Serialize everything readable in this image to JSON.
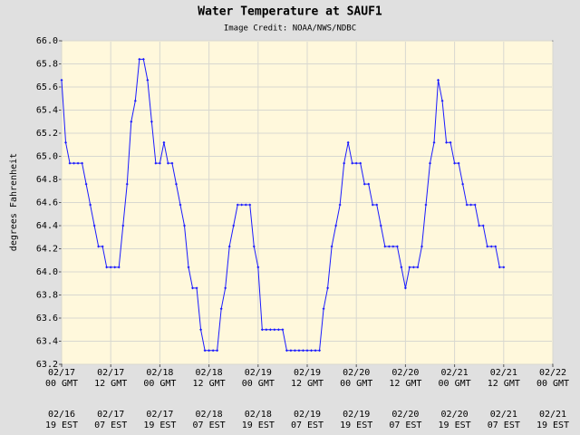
{
  "chart_data": {
    "type": "line",
    "title": "Water Temperature at SAUF1",
    "subtitle": "Image Credit: NOAA/NWS/NDBC",
    "y_label": "degrees Fahrenheit",
    "grid": true,
    "x": [
      "02/17 00",
      "02/17 01",
      "02/17 02",
      "02/17 03",
      "02/17 04",
      "02/17 05",
      "02/17 06",
      "02/17 07",
      "02/17 08",
      "02/17 09",
      "02/17 10",
      "02/17 11",
      "02/17 12",
      "02/17 13",
      "02/17 14",
      "02/17 15",
      "02/17 16",
      "02/17 17",
      "02/17 18",
      "02/17 19",
      "02/17 20",
      "02/17 21",
      "02/17 22",
      "02/17 23",
      "02/18 00",
      "02/18 01",
      "02/18 02",
      "02/18 03",
      "02/18 04",
      "02/18 05",
      "02/18 06",
      "02/18 07",
      "02/18 08",
      "02/18 09",
      "02/18 10",
      "02/18 11",
      "02/18 12",
      "02/18 13",
      "02/18 14",
      "02/18 15",
      "02/18 16",
      "02/18 17",
      "02/18 18",
      "02/18 19",
      "02/18 20",
      "02/18 21",
      "02/18 22",
      "02/18 23",
      "02/19 00",
      "02/19 01",
      "02/19 02",
      "02/19 03",
      "02/19 04",
      "02/19 05",
      "02/19 06",
      "02/19 07",
      "02/19 08",
      "02/19 09",
      "02/19 10",
      "02/19 11",
      "02/19 12",
      "02/19 13",
      "02/19 14",
      "02/19 15",
      "02/19 16",
      "02/19 17",
      "02/19 18",
      "02/19 19",
      "02/19 20",
      "02/19 21",
      "02/19 22",
      "02/19 23",
      "02/20 00",
      "02/20 01",
      "02/20 02",
      "02/20 03",
      "02/20 04",
      "02/20 05",
      "02/20 06",
      "02/20 07",
      "02/20 08",
      "02/20 09",
      "02/20 10",
      "02/20 11",
      "02/20 12",
      "02/20 13",
      "02/20 14",
      "02/20 15",
      "02/20 16",
      "02/20 17",
      "02/20 18",
      "02/20 19",
      "02/20 20",
      "02/20 21",
      "02/20 22",
      "02/20 23",
      "02/21 00",
      "02/21 01",
      "02/21 02",
      "02/21 03",
      "02/21 04",
      "02/21 05",
      "02/21 06",
      "02/21 07",
      "02/21 08",
      "02/21 09",
      "02/21 10",
      "02/21 11",
      "02/21 12"
    ],
    "series": [
      {
        "name": "Water Temperature",
        "color": "#1a1aff",
        "values": [
          65.66,
          65.12,
          64.94,
          64.94,
          64.94,
          64.94,
          64.76,
          64.58,
          64.4,
          64.22,
          64.22,
          64.04,
          64.04,
          64.04,
          64.04,
          64.4,
          64.76,
          65.3,
          65.48,
          65.84,
          65.84,
          65.66,
          65.3,
          64.94,
          64.94,
          65.12,
          64.94,
          64.94,
          64.76,
          64.58,
          64.4,
          64.04,
          63.86,
          63.86,
          63.5,
          63.32,
          63.32,
          63.32,
          63.32,
          63.68,
          63.86,
          64.22,
          64.4,
          64.58,
          64.58,
          64.58,
          64.58,
          64.22,
          64.04,
          63.5,
          63.5,
          63.5,
          63.5,
          63.5,
          63.5,
          63.32,
          63.32,
          63.32,
          63.32,
          63.32,
          63.32,
          63.32,
          63.32,
          63.32,
          63.68,
          63.86,
          64.22,
          64.4,
          64.58,
          64.94,
          65.12,
          64.94,
          64.94,
          64.94,
          64.76,
          64.76,
          64.58,
          64.58,
          64.4,
          64.22,
          64.22,
          64.22,
          64.22,
          64.04,
          63.86,
          64.04,
          64.04,
          64.04,
          64.22,
          64.58,
          64.94,
          65.12,
          65.66,
          65.48,
          65.12,
          65.12,
          64.94,
          64.94,
          64.76,
          64.58,
          64.58,
          64.58,
          64.4,
          64.4,
          64.22,
          64.22,
          64.22,
          64.04,
          64.04
        ]
      }
    ],
    "xlim": [
      "02/17 00",
      "02/22 00"
    ],
    "xticks": [
      {
        "value": "02/17 00",
        "label": "02/17",
        "time": "00 GMT",
        "local_date": "02/16",
        "local_time": "19 EST"
      },
      {
        "value": "02/17 12",
        "label": "02/17",
        "time": "12 GMT",
        "local_date": "02/17",
        "local_time": "07 EST"
      },
      {
        "value": "02/18 00",
        "label": "02/18",
        "time": "00 GMT",
        "local_date": "02/17",
        "local_time": "19 EST"
      },
      {
        "value": "02/18 12",
        "label": "02/18",
        "time": "12 GMT",
        "local_date": "02/18",
        "local_time": "07 EST"
      },
      {
        "value": "02/19 00",
        "label": "02/19",
        "time": "00 GMT",
        "local_date": "02/18",
        "local_time": "19 EST"
      },
      {
        "value": "02/19 12",
        "label": "02/19",
        "time": "12 GMT",
        "local_date": "02/19",
        "local_time": "07 EST"
      },
      {
        "value": "02/20 00",
        "label": "02/20",
        "time": "00 GMT",
        "local_date": "02/19",
        "local_time": "19 EST"
      },
      {
        "value": "02/20 12",
        "label": "02/20",
        "time": "12 GMT",
        "local_date": "02/20",
        "local_time": "07 EST"
      },
      {
        "value": "02/21 00",
        "label": "02/21",
        "time": "00 GMT",
        "local_date": "02/20",
        "local_time": "19 EST"
      },
      {
        "value": "02/21 12",
        "label": "02/21",
        "time": "12 GMT",
        "local_date": "02/21",
        "local_time": "07 EST"
      },
      {
        "value": "02/22 00",
        "label": "02/22",
        "time": "00 GMT",
        "local_date": "02/21",
        "local_time": "19 EST"
      }
    ],
    "ylim": [
      63.2,
      66.0
    ],
    "yticks": [
      63.2,
      63.4,
      63.6,
      63.8,
      {
        "value": 64,
        "label": "64.0"
      },
      64.2,
      64.4,
      64.6,
      64.8,
      {
        "value": 65,
        "label": "65.0"
      },
      65.2,
      65.4,
      65.6,
      65.8,
      {
        "value": 66,
        "label": "66.0"
      }
    ]
  }
}
